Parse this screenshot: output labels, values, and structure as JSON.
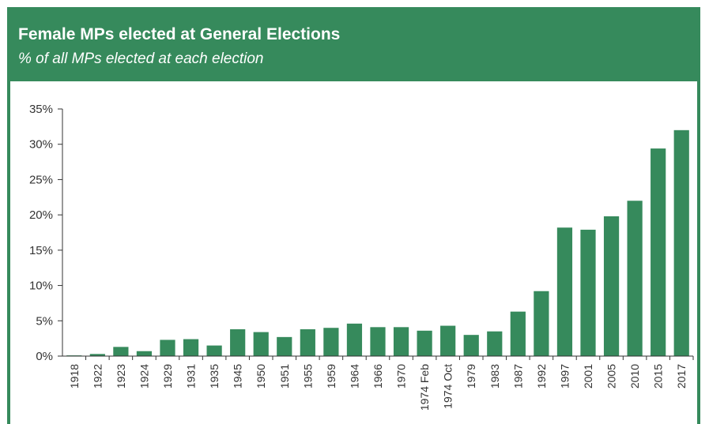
{
  "header": {
    "title": "Female MPs elected at General Elections",
    "subtitle": "% of all MPs elected at each election"
  },
  "colors": {
    "accent": "#368a5c",
    "bar": "#368a5c",
    "axis": "#333333"
  },
  "chart_data": {
    "type": "bar",
    "title": "Female MPs elected at General Elections",
    "subtitle": "% of all MPs elected at each election",
    "xlabel": "",
    "ylabel": "",
    "ylim": [
      0,
      35
    ],
    "yticks": [
      "0%",
      "5%",
      "10%",
      "15%",
      "20%",
      "25%",
      "30%",
      "35%"
    ],
    "categories": [
      "1918",
      "1922",
      "1923",
      "1924",
      "1929",
      "1931",
      "1935",
      "1945",
      "1950",
      "1951",
      "1955",
      "1959",
      "1964",
      "1966",
      "1970",
      "1974 Feb",
      "1974 Oct",
      "1979",
      "1983",
      "1987",
      "1992",
      "1997",
      "2001",
      "2005",
      "2010",
      "2015",
      "2017"
    ],
    "values": [
      0.1,
      0.3,
      1.3,
      0.7,
      2.3,
      2.4,
      1.5,
      3.8,
      3.4,
      2.7,
      3.8,
      4.0,
      4.6,
      4.1,
      4.1,
      3.6,
      4.3,
      3.0,
      3.5,
      6.3,
      9.2,
      18.2,
      17.9,
      19.8,
      22.0,
      29.4,
      32.0
    ],
    "grid": false,
    "legend": "none"
  }
}
